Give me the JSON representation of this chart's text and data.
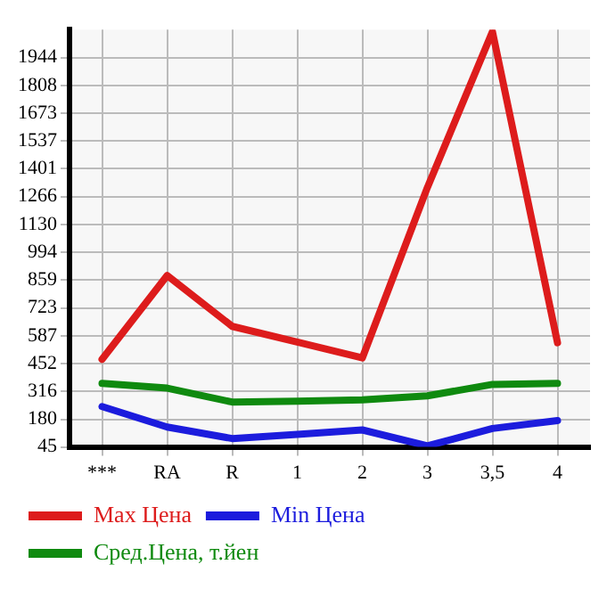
{
  "chart_data": {
    "type": "line",
    "categories": [
      "***",
      "RA",
      "R",
      "1",
      "2",
      "3",
      "3,5",
      "4"
    ],
    "series": [
      {
        "name": "Max Цена",
        "color": "#dd1c1c",
        "values": [
          472,
          881,
          633,
          556,
          479,
          1310,
          2070,
          553
        ]
      },
      {
        "name": "Min Цена",
        "color": "#1c1cdd",
        "values": [
          242,
          142,
          86,
          106,
          128,
          50,
          135,
          174
        ]
      },
      {
        "name": "Сред.Цена, т.йен",
        "color": "#0f8a0f",
        "values": [
          355,
          332,
          264,
          268,
          275,
          294,
          350,
          355
        ]
      }
    ],
    "ylim": [
      45,
      2080
    ],
    "yticks": [
      45,
      180,
      316,
      452,
      587,
      723,
      859,
      994,
      1130,
      1266,
      1401,
      1537,
      1673,
      1808,
      1944
    ],
    "grid": true,
    "legend": "bottom",
    "marker": "none",
    "line_style": "solid"
  }
}
